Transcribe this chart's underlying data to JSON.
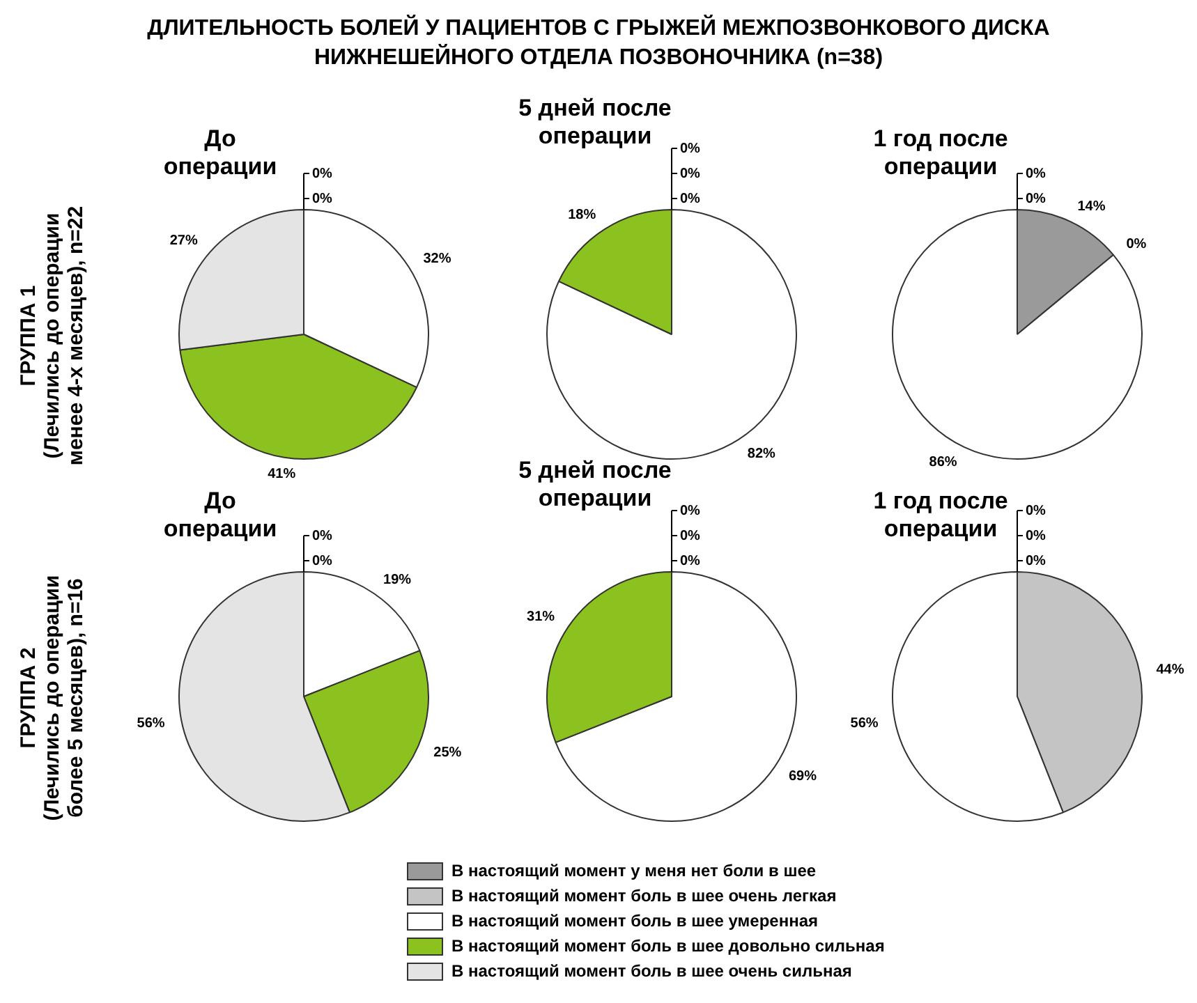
{
  "chart_data": [
    {
      "type": "pie",
      "title": "ДЛИТЕЛЬНОСТЬ БОЛЕЙ У ПАЦИЕНТОВ С ГРЫЖЕЙ МЕЖПОЗВОНКОВОГО ДИСКА\nНИЖНЕШЕЙНОГО ОТДЕЛА ПОЗВОНОЧНИКА (n=38)",
      "subtitle": "До\nоперации",
      "ylabel": "ГРУППА 1\n(Лечились до операции\nменее 4-х месяцев), n=22",
      "categories": [
        null,
        null,
        null,
        null,
        null
      ],
      "values": [
        0,
        0,
        32,
        41,
        27
      ],
      "value_labels": [
        "0%",
        "0%",
        "32%",
        "41%",
        "27%"
      ],
      "colors": [
        "#9a9a9a",
        "#c4c4c4",
        "#ffffff",
        "#8cc21f",
        "#e4e4e4"
      ]
    },
    {
      "type": "pie",
      "subtitle": "5 дней после\nоперации",
      "categories": [
        null,
        null,
        null,
        null,
        null
      ],
      "values": [
        0,
        0,
        82,
        18,
        0
      ],
      "value_labels": [
        "0%",
        "0%",
        "82%",
        "18%",
        "0%"
      ],
      "colors": [
        "#9a9a9a",
        "#c4c4c4",
        "#ffffff",
        "#8cc21f",
        "#e4e4e4"
      ]
    },
    {
      "type": "pie",
      "subtitle": "1 год после\nоперации",
      "categories": [
        null,
        null,
        null,
        null,
        null
      ],
      "values": [
        14,
        0,
        86,
        0,
        0
      ],
      "value_labels": [
        "14%",
        "0%",
        "86%",
        "0%",
        "0%"
      ],
      "colors": [
        "#9a9a9a",
        "#c4c4c4",
        "#ffffff",
        "#8cc21f",
        "#e4e4e4"
      ]
    },
    {
      "type": "pie",
      "subtitle": "До\nоперации",
      "ylabel": "ГРУППА 2\n(Лечились до операции\nболее 5 месяцев), n=16",
      "categories": [
        null,
        null,
        null,
        null,
        null
      ],
      "values": [
        0,
        0,
        19,
        25,
        56
      ],
      "value_labels": [
        "0%",
        "0%",
        "19%",
        "25%",
        "56%"
      ],
      "colors": [
        "#9a9a9a",
        "#c4c4c4",
        "#ffffff",
        "#8cc21f",
        "#e4e4e4"
      ]
    },
    {
      "type": "pie",
      "subtitle": "5 дней после\nоперации",
      "categories": [
        "В настоящий момент у меня нет боли в шее",
        "В настоящий момент боль в шее очень легкая",
        "В настоящий момент боль в шее умеренная",
        "В настоящий момент боль в шее довольно сильная",
        "В настоящий момент боль в шее очень сильная"
      ],
      "values": [
        0,
        0,
        69,
        31,
        0
      ],
      "value_labels": [
        "0%",
        "0%",
        "69%",
        "31%",
        "0%"
      ],
      "colors": [
        "#9a9a9a",
        "#c4c4c4",
        "#ffffff",
        "#8cc21f",
        "#e4e4e4"
      ],
      "legend": "bottom"
    },
    {
      "type": "pie",
      "subtitle": "1 год после\nоперации",
      "categories": [
        null,
        null,
        null,
        null,
        null
      ],
      "values": [
        0,
        44,
        56,
        0,
        0
      ],
      "value_labels": [
        "0%",
        "44%",
        "56%",
        "0%",
        "0%"
      ],
      "colors": [
        "#9a9a9a",
        "#c4c4c4",
        "#ffffff",
        "#8cc21f",
        "#e4e4e4"
      ]
    }
  ]
}
